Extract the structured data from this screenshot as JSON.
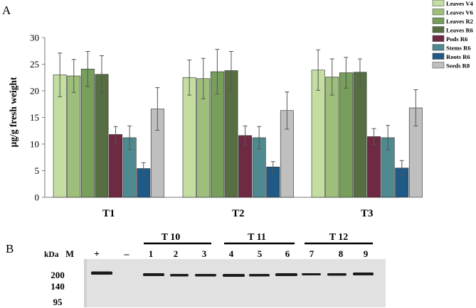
{
  "panels": {
    "a": "A",
    "b": "B"
  },
  "chart_data": {
    "type": "bar",
    "title": "",
    "xlabel": "",
    "ylabel": "µg/g fresh weight",
    "ylim": [
      0,
      30
    ],
    "yticks": [
      0,
      5,
      10,
      15,
      20,
      25,
      30
    ],
    "categories": [
      "T1",
      "T2",
      "T3"
    ],
    "series": [
      {
        "name": "Leaves V4",
        "color": "#c3dea0",
        "values": [
          23.0,
          22.5,
          23.9
        ],
        "errors": [
          4.1,
          3.3,
          3.8
        ]
      },
      {
        "name": "Leaves V6",
        "color": "#9dbf7b",
        "values": [
          22.8,
          22.3,
          22.6
        ],
        "errors": [
          3.1,
          3.8,
          3.4
        ]
      },
      {
        "name": "Leaves R2",
        "color": "#789e5c",
        "values": [
          24.1,
          23.6,
          23.4
        ],
        "errors": [
          3.3,
          4.2,
          2.9
        ]
      },
      {
        "name": "Leaves R6",
        "color": "#566e42",
        "values": [
          23.1,
          23.8,
          23.5
        ],
        "errors": [
          3.5,
          3.6,
          2.5
        ]
      },
      {
        "name": "Pods R6",
        "color": "#6e2a42",
        "values": [
          11.8,
          11.6,
          11.4
        ],
        "errors": [
          1.5,
          1.8,
          1.5
        ]
      },
      {
        "name": "Stems R6",
        "color": "#4e8a90",
        "values": [
          11.2,
          11.2,
          11.2
        ],
        "errors": [
          2.2,
          2.1,
          2.3
        ]
      },
      {
        "name": "Roots R6",
        "color": "#1f5a86",
        "values": [
          5.4,
          5.7,
          5.5
        ],
        "errors": [
          1.1,
          1.0,
          1.4
        ]
      },
      {
        "name": "Seeds R8",
        "color": "#bfbfbf",
        "values": [
          16.6,
          16.3,
          16.8
        ],
        "errors": [
          4.0,
          3.5,
          3.4
        ]
      }
    ],
    "legend": "top-right"
  },
  "gel": {
    "kda_label": "kDa",
    "marker_label": "M",
    "positive_label": "+",
    "negative_label": "–",
    "groups": [
      {
        "name": "T 10",
        "lanes": [
          "1",
          "2",
          "3"
        ]
      },
      {
        "name": "T 11",
        "lanes": [
          "4",
          "5",
          "6"
        ]
      },
      {
        "name": "T 12",
        "lanes": [
          "7",
          "8",
          "9"
        ]
      }
    ],
    "mw_markers": [
      "200",
      "140",
      "95"
    ]
  }
}
